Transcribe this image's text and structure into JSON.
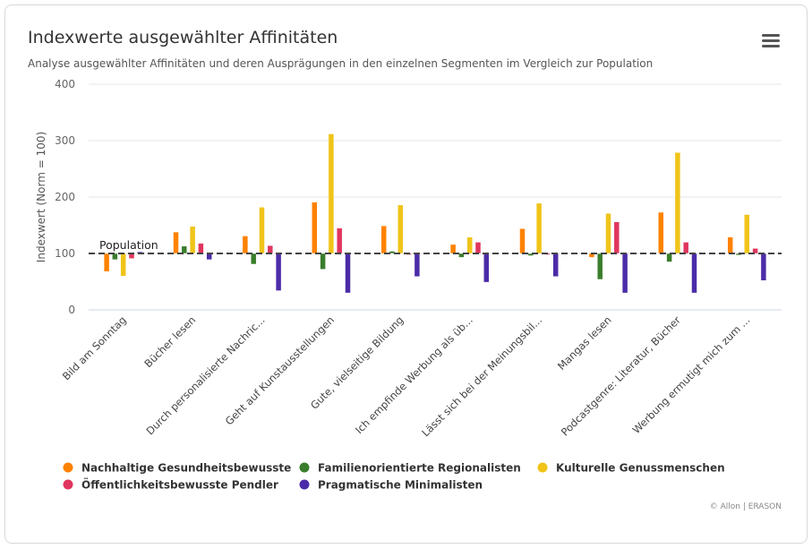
{
  "chart_data": {
    "type": "bar",
    "title": "Indexwerte ausgewählter Affinitäten",
    "subtitle": "Analyse ausgewählter Affinitäten und deren Ausprägungen in den einzelnen Segmenten im Vergleich zur Population",
    "ylabel": "Indexwert (Norm = 100)",
    "ylim": [
      0,
      400
    ],
    "yticks": [
      0,
      100,
      200,
      300,
      400
    ],
    "baseline": 100,
    "reference_line": {
      "value": 100,
      "label": "Population",
      "style": "dashed"
    },
    "grid": true,
    "legend_position": "bottom",
    "categories": [
      "Bild am Sonntag",
      "Bücher lesen",
      "Durch personalisierte Nachric...",
      "Geht auf Kunstausstellungen",
      "Gute, vielseitige Bildung",
      "Ich empfinde Werbung als üb...",
      "Lässt sich bei der Meinungsbil...",
      "Mangas lesen",
      "Podcastgenre: Literatur, Bücher",
      "Werbung ermutigt mich zum ..."
    ],
    "series": [
      {
        "name": "Nachhaltige Gesundheitsbewusste",
        "color": "#ff8200",
        "values": [
          68,
          138,
          131,
          191,
          149,
          116,
          144,
          93,
          173,
          129
        ]
      },
      {
        "name": "Familienorientierte Regionalisten",
        "color": "#3a7d2c",
        "values": [
          89,
          113,
          81,
          72,
          104,
          93,
          96,
          54,
          85,
          97
        ]
      },
      {
        "name": "Kulturelle Genussmenschen",
        "color": "#f0c419",
        "values": [
          60,
          148,
          182,
          312,
          186,
          129,
          189,
          171,
          279,
          169
        ]
      },
      {
        "name": "Öffentlichkeitsbewusste Pendler",
        "color": "#e0365e",
        "values": [
          91,
          118,
          114,
          145,
          100,
          120,
          98,
          156,
          120,
          109
        ]
      },
      {
        "name": "Pragmatische Minimalisten",
        "color": "#4b2ca8",
        "values": [
          103,
          89,
          34,
          30,
          59,
          49,
          59,
          30,
          30,
          52
        ]
      }
    ]
  },
  "menu_icon": "hamburger-menu-icon",
  "credits": "© Allon | ERASON"
}
